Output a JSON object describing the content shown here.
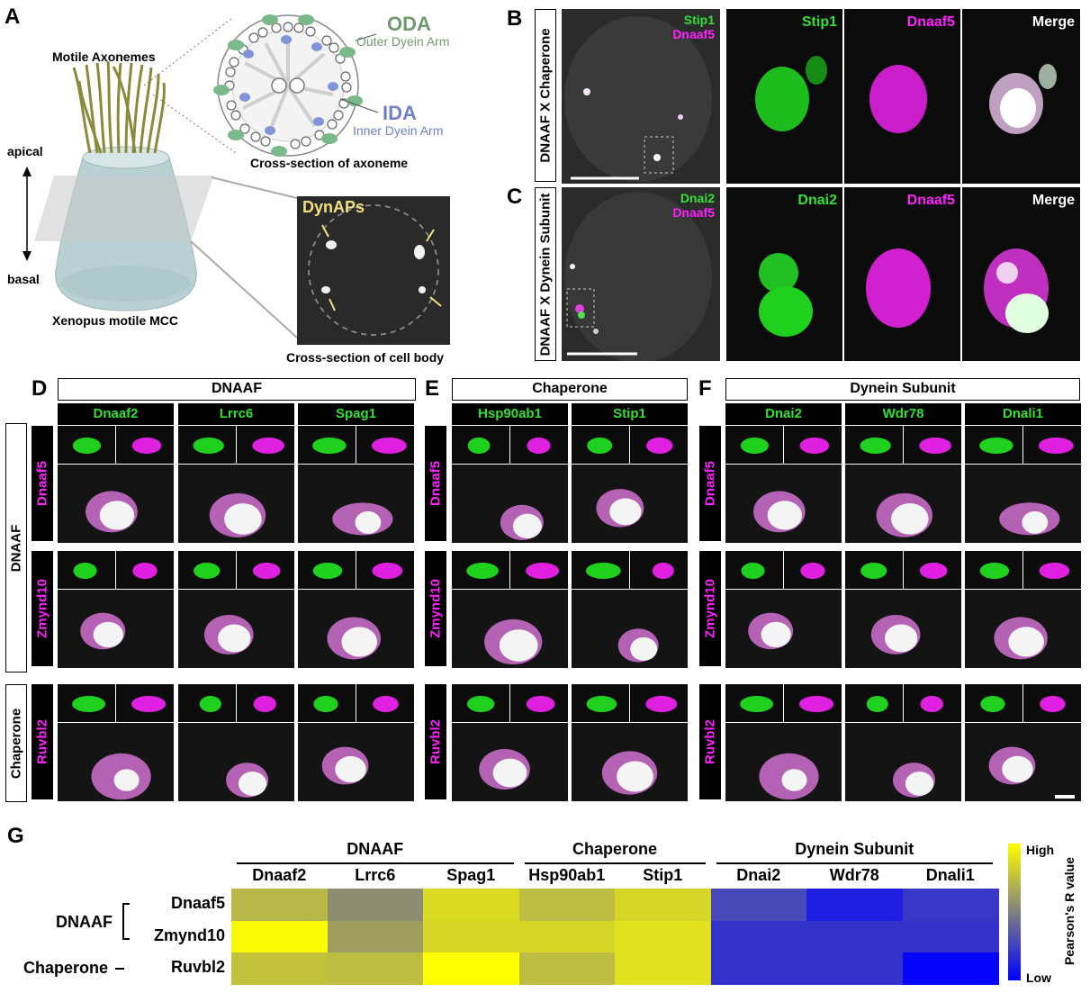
{
  "panel_letters": {
    "A": "A",
    "B": "B",
    "C": "C",
    "D": "D",
    "E": "E",
    "F": "F",
    "G": "G"
  },
  "panel_a": {
    "motile_axonemes": "Motile Axonemes",
    "apical": "apical",
    "basal": "basal",
    "cell_name": "Xenopus motile MCC",
    "oda": "ODA",
    "oda_full": "Outer Dyein Arm",
    "ida": "IDA",
    "ida_full": "Inner Dyein Arm",
    "axoneme_caption": "Cross-section of axoneme",
    "dynaps": "DynAPs",
    "cellbody_caption": "Cross-section of cell body"
  },
  "panel_b": {
    "side_label": "DNAAF X Chaperone",
    "overview_green": "Stip1",
    "overview_magenta": "Dnaaf5",
    "zoom_green": "Stip1",
    "zoom_magenta": "Dnaaf5",
    "zoom_merge": "Merge"
  },
  "panel_c": {
    "side_label": "DNAAF X Dynein Subunit",
    "overview_green": "Dnai2",
    "overview_magenta": "Dnaaf5",
    "zoom_green": "Dnai2",
    "zoom_magenta": "Dnaaf5",
    "zoom_merge": "Merge"
  },
  "grid": {
    "groups": [
      "DNAAF",
      "Chaperone",
      "Dynein Subunit"
    ],
    "columns": [
      "Dnaaf2",
      "Lrrc6",
      "Spag1",
      "Hsp90ab1",
      "Stip1",
      "Dnai2",
      "Wdr78",
      "Dnali1"
    ],
    "rows": [
      "Dnaaf5",
      "Zmynd10",
      "Ruvbl2"
    ],
    "row_groups": [
      "DNAAF",
      "Chaperone"
    ]
  },
  "heatmap": {
    "groups": [
      "DNAAF",
      "Chaperone",
      "Dynein Subunit"
    ],
    "columns": [
      "Dnaaf2",
      "Lrrc6",
      "Spag1",
      "Hsp90ab1",
      "Stip1",
      "Dnai2",
      "Wdr78",
      "Dnali1"
    ],
    "row_groups": [
      "DNAAF",
      "Chaperone"
    ],
    "rows": [
      "Dnaaf5",
      "Zmynd10",
      "Ruvbl2"
    ],
    "values": [
      [
        0.72,
        0.55,
        0.86,
        0.74,
        0.84,
        0.28,
        0.12,
        0.22
      ],
      [
        0.98,
        0.62,
        0.84,
        0.84,
        0.88,
        0.2,
        0.2,
        0.2
      ],
      [
        0.76,
        0.74,
        1.0,
        0.74,
        0.88,
        0.2,
        0.2,
        0.02
      ]
    ],
    "legend_title": "Pearson's R value",
    "legend_high": "High",
    "legend_low": "Low",
    "colors": {
      "low": "#0000ff",
      "mid": "#808080",
      "high": "#ffff00"
    }
  }
}
